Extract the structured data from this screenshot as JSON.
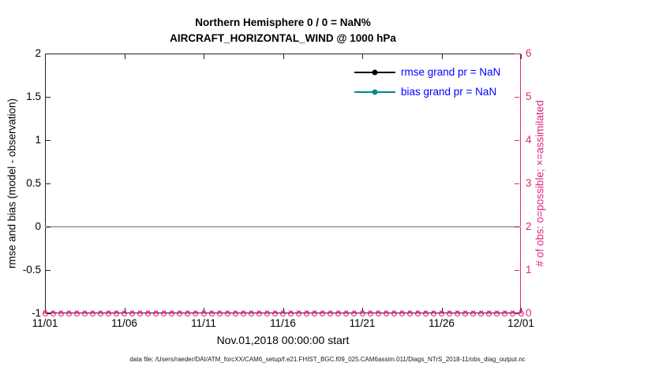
{
  "figure": {
    "footer": "data file: /Users/raeder/DAI/ATM_forcXX/CAM6_setup/f.e21.FHIST_BGC.f09_025.CAM6assim.011/Diags_NTrS_2018-11/obs_diag_output.nc"
  },
  "chart_data": {
    "type": "line",
    "title": "Northern Hemisphere 0 / 0 = NaN%",
    "subtitle": "AIRCRAFT_HORIZONTAL_WIND @ 1000 hPa",
    "xlabel": "Nov.01,2018 00:00:00 start",
    "ylabel_left": "rmse and bias (model - observation)",
    "ylabel_right": "# of obs: o=possible; ×=assimilated",
    "x_tick_labels": [
      "11/01",
      "11/06",
      "11/11",
      "11/16",
      "11/21",
      "11/26",
      "12/01"
    ],
    "ylim_left": [
      -1,
      2
    ],
    "y_ticks_left": [
      "-1",
      "-0.5",
      "0",
      "0.5",
      "1",
      "1.5",
      "2"
    ],
    "ylim_right": [
      0,
      6
    ],
    "y_ticks_right": [
      "0",
      "1",
      "2",
      "3",
      "4",
      "5",
      "6"
    ],
    "zero_line_left": 0,
    "grid": false,
    "legend_position": "top-right-inside",
    "legend_text_color": "#0000ff",
    "right_axis_color": "#dc267f",
    "zero_line_color": "#b9aab2",
    "series": [
      {
        "name": "rmse",
        "legend_label": "rmse grand pr = NaN",
        "color": "#000000",
        "marker": "o",
        "grand_pr": "NaN",
        "values": []
      },
      {
        "name": "bias",
        "legend_label": "bias grand pr = NaN",
        "color": "#008b8b",
        "marker": "o",
        "grand_pr": "NaN",
        "values": []
      },
      {
        "name": "possible_obs",
        "marker": "o",
        "color": "#dc267f",
        "axis": "right",
        "constant_value": 0,
        "n_points": 61
      },
      {
        "name": "assimilated_obs",
        "marker": "×",
        "color": "#dc267f",
        "axis": "right",
        "constant_value": 0,
        "n_points": 61
      }
    ]
  }
}
